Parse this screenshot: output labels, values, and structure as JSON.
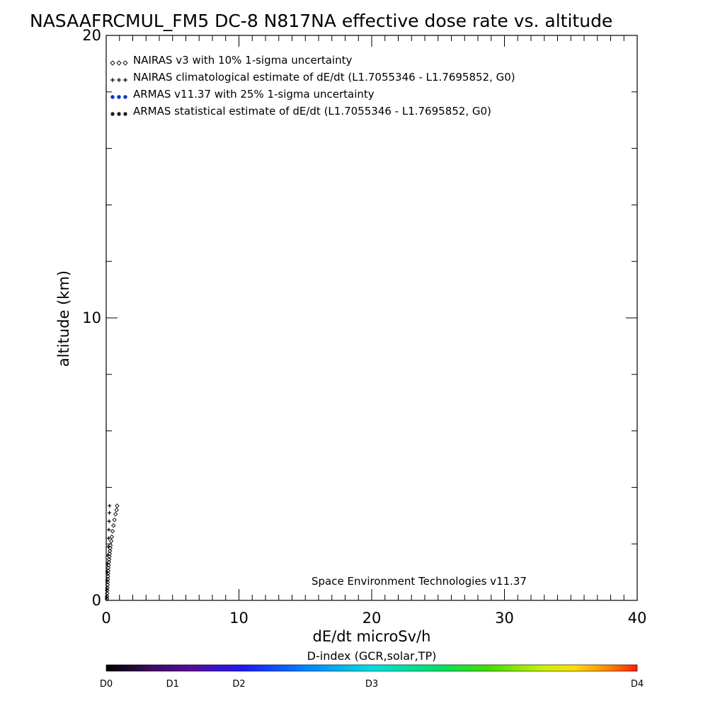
{
  "chart_data": {
    "type": "scatter",
    "title": "NASAAFRCMUL_FM5 DC-8   N817NA effective dose rate vs. altitude",
    "xlabel": "dE/dt microSv/h",
    "ylabel": "altitude (km)",
    "xlim": [
      0,
      40
    ],
    "ylim": [
      0,
      20
    ],
    "xticks": [
      "0",
      "10",
      "20",
      "30",
      "40"
    ],
    "yticks": [
      "0",
      "10",
      "20"
    ],
    "legend_position": "top-left",
    "legend": [
      {
        "label": "NAIRAS v3 with 10% 1-sigma uncertainty",
        "marker": "diamond",
        "color": "#000000"
      },
      {
        "label": "NAIRAS climatological estimate of dE/dt (L1.7055346 - L1.7695852, G0)",
        "marker": "plus",
        "color": "#000000"
      },
      {
        "label": "ARMAS v11.37 with 25% 1-sigma uncertainty",
        "marker": "dot",
        "color": "#0033cc"
      },
      {
        "label": "ARMAS statistical estimate of dE/dt (L1.7055346 - L1.7695852, G0)",
        "marker": "asterisk",
        "color": "#000000"
      }
    ],
    "annotation": "Space Environment Technologies v11.37",
    "series": [
      {
        "name": "NAIRAS v3 with 10% 1-sigma uncertainty",
        "marker": "diamond",
        "points": [
          [
            0.05,
            0.05
          ],
          [
            0.06,
            0.15
          ],
          [
            0.07,
            0.25
          ],
          [
            0.08,
            0.35
          ],
          [
            0.09,
            0.45
          ],
          [
            0.1,
            0.55
          ],
          [
            0.11,
            0.65
          ],
          [
            0.12,
            0.75
          ],
          [
            0.13,
            0.85
          ],
          [
            0.14,
            0.95
          ],
          [
            0.15,
            1.05
          ],
          [
            0.16,
            1.15
          ],
          [
            0.18,
            1.25
          ],
          [
            0.2,
            1.35
          ],
          [
            0.22,
            1.45
          ],
          [
            0.24,
            1.55
          ],
          [
            0.26,
            1.65
          ],
          [
            0.28,
            1.75
          ],
          [
            0.3,
            1.85
          ],
          [
            0.32,
            1.95
          ],
          [
            0.38,
            2.1
          ],
          [
            0.42,
            2.25
          ],
          [
            0.48,
            2.45
          ],
          [
            0.55,
            2.65
          ],
          [
            0.62,
            2.85
          ],
          [
            0.7,
            3.05
          ],
          [
            0.78,
            3.2
          ],
          [
            0.82,
            3.35
          ]
        ]
      },
      {
        "name": "NAIRAS climatological estimate of dE/dt (L1.7055346 - L1.7695852, G0)",
        "marker": "plus",
        "points": [
          [
            0.05,
            0.1
          ],
          [
            0.06,
            0.4
          ],
          [
            0.07,
            0.7
          ],
          [
            0.08,
            1.0
          ],
          [
            0.1,
            1.3
          ],
          [
            0.12,
            1.6
          ],
          [
            0.15,
            1.9
          ],
          [
            0.18,
            2.2
          ],
          [
            0.2,
            2.5
          ],
          [
            0.22,
            2.8
          ],
          [
            0.24,
            3.1
          ],
          [
            0.25,
            3.35
          ]
        ]
      },
      {
        "name": "ARMAS v11.37 with 25% 1-sigma uncertainty",
        "marker": "dot",
        "points": []
      },
      {
        "name": "ARMAS statistical estimate of dE/dt (L1.7055346 - L1.7695852, G0)",
        "marker": "asterisk",
        "points": []
      }
    ],
    "colorbar": {
      "title": "D-index (GCR,solar,TP)",
      "labels": [
        "D0",
        "D1",
        "D2",
        "D3",
        "D4"
      ],
      "positions": [
        0.0,
        0.125,
        0.25,
        0.5,
        1.0
      ]
    }
  }
}
